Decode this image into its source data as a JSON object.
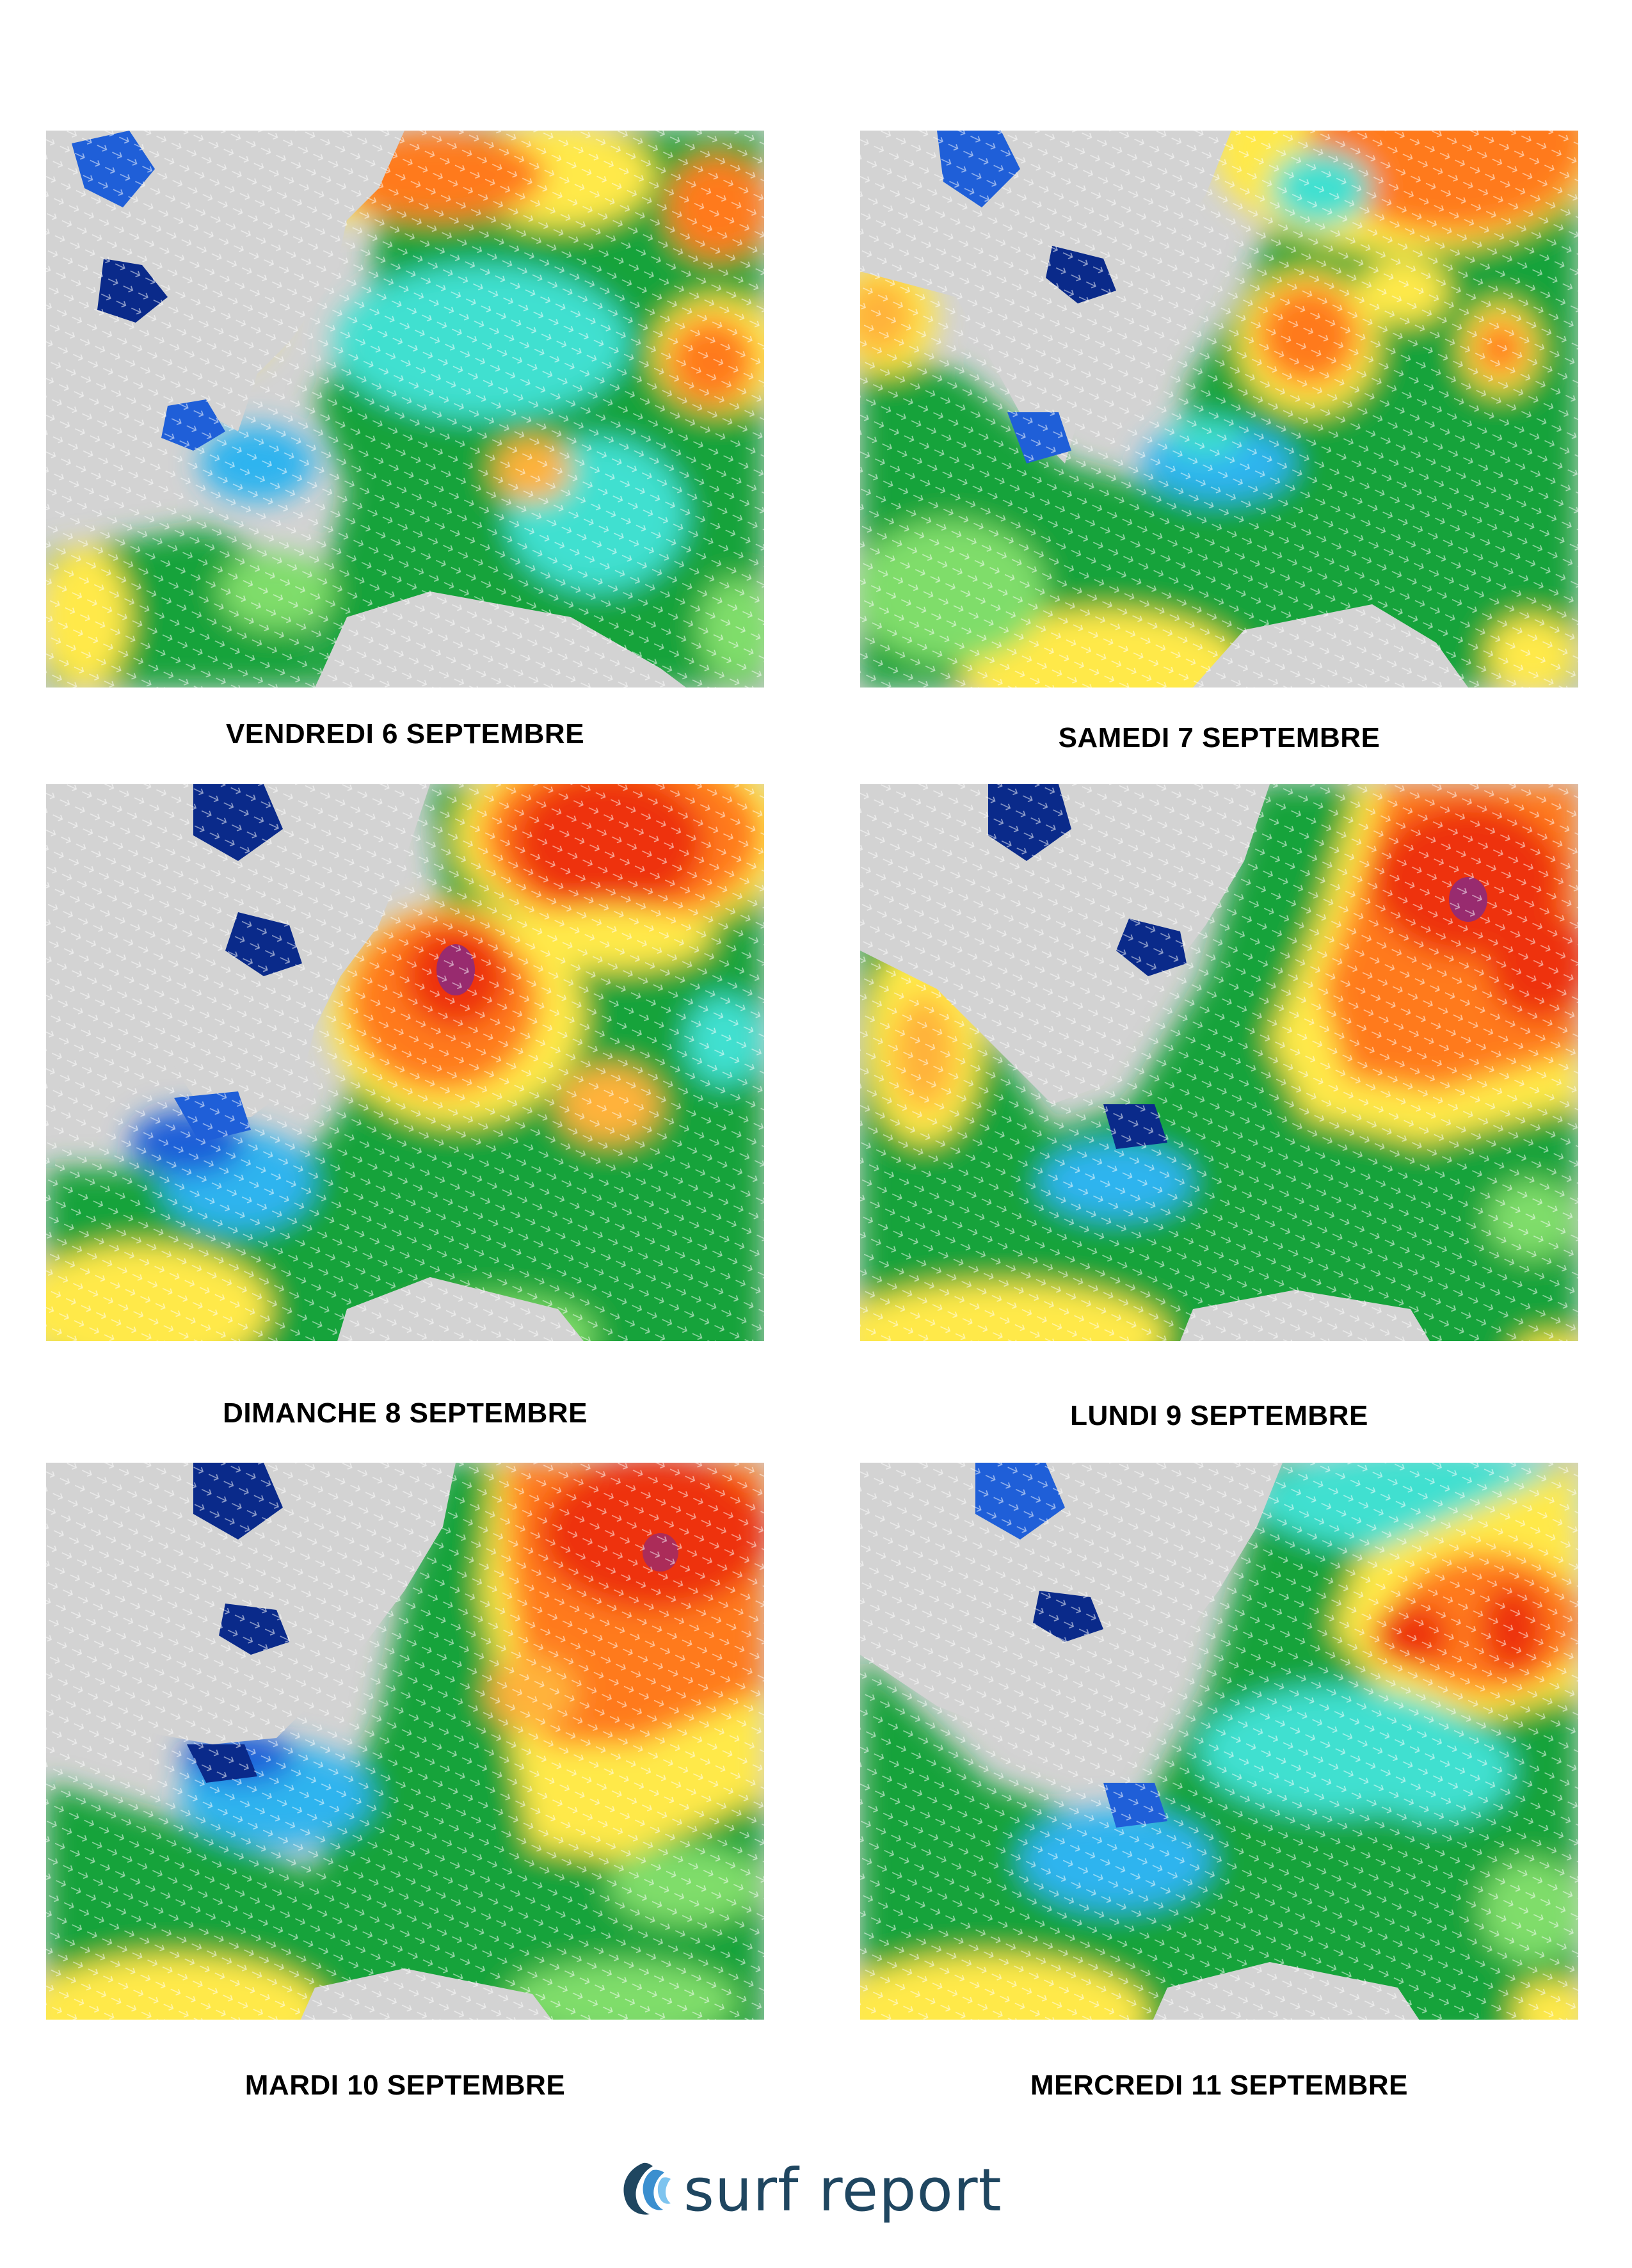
{
  "panels": [
    {
      "caption": "VENDREDI 6 SEPTEMBRE"
    },
    {
      "caption": "SAMEDI 7 SEPTEMBRE"
    },
    {
      "caption": "DIMANCHE 8 SEPTEMBRE"
    },
    {
      "caption": "LUNDI 9 SEPTEMBRE"
    },
    {
      "caption": "MARDI 10 SEPTEMBRE"
    },
    {
      "caption": "MERCREDI 11 SEPTEMBRE"
    }
  ],
  "brand": {
    "name": "surf report",
    "color": "#1f4660",
    "accent": "#3b8fcf"
  },
  "palette": {
    "land": "#d3d3d3",
    "very_low": "#0a2a8a",
    "low": "#1f5fd8",
    "low_mid": "#2fb4ef",
    "mid_low": "#3fe0d0",
    "mid": "#17a33b",
    "mid_high": "#7fdd6a",
    "high": "#ffe94a",
    "higher": "#ffb23a",
    "very_high": "#ff7a1a",
    "peak": "#ee3311",
    "extreme": "#8e2a7a"
  }
}
